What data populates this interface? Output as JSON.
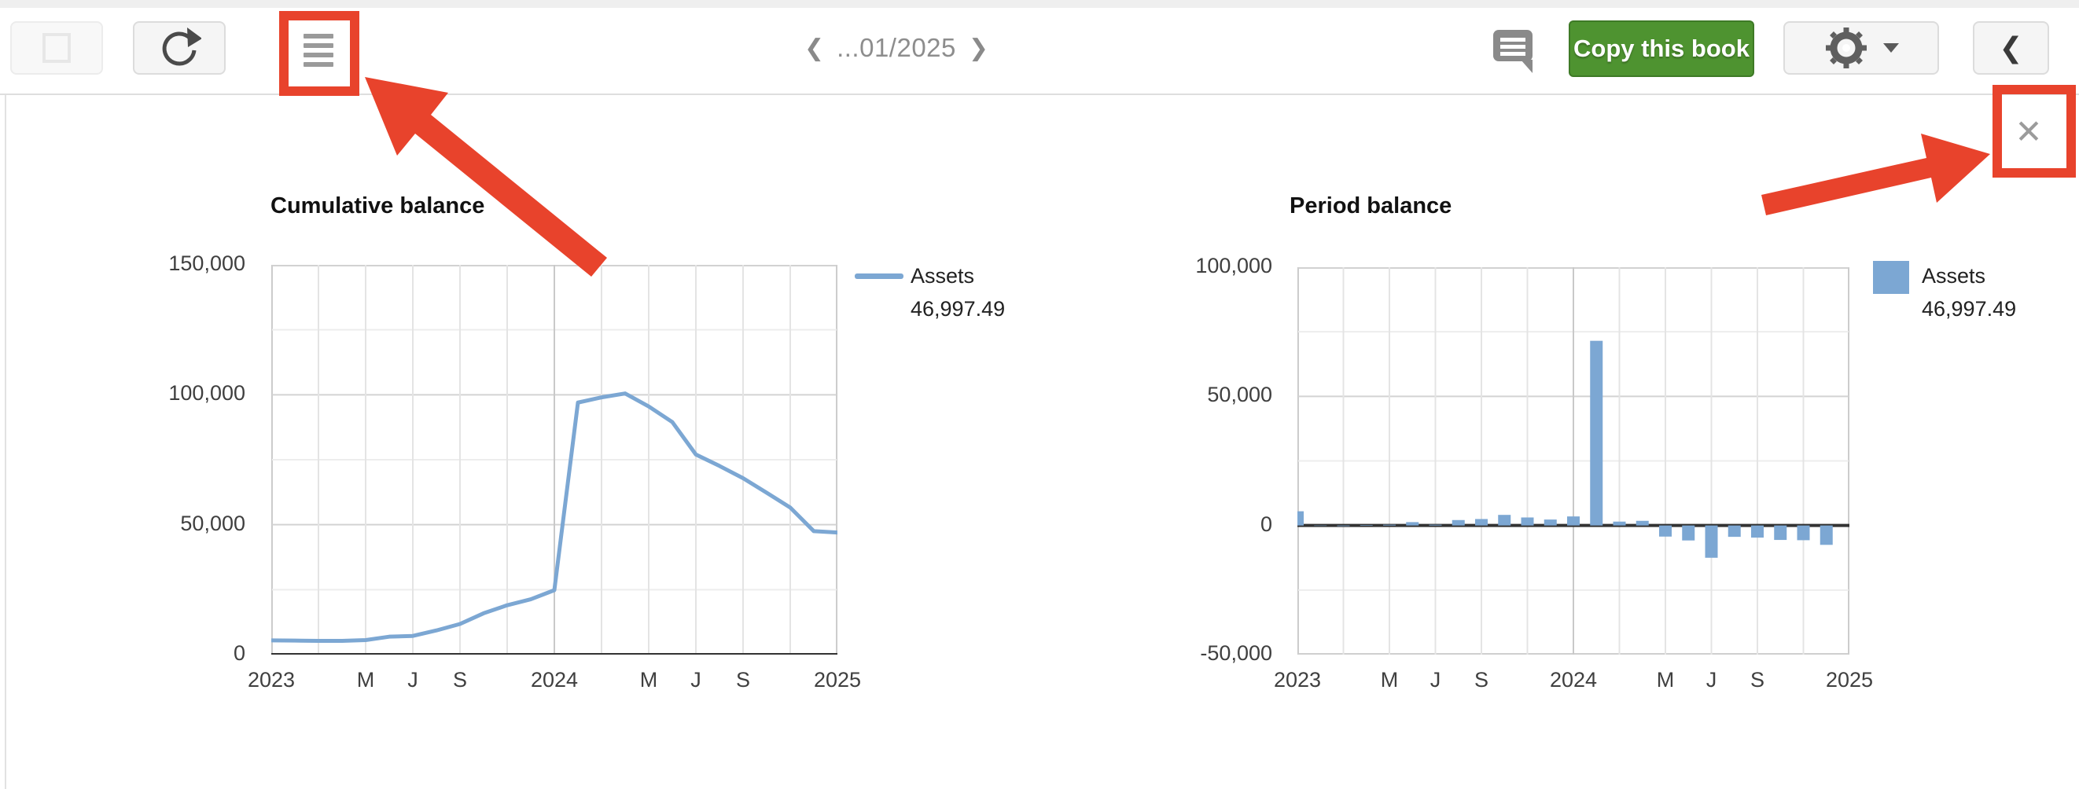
{
  "toolbar": {
    "select_button": {
      "icon": "square-outline-icon"
    },
    "refresh_button": {
      "icon": "refresh-icon"
    },
    "transactions_list_button": {
      "icon": "list-icon"
    },
    "date_nav": {
      "prev": "❮",
      "label": "...01/2025",
      "next": "❯"
    },
    "comment_button": {
      "icon": "comment-icon"
    },
    "copy_book_button": {
      "label": "Copy this book"
    },
    "settings_button": {
      "icon": "gear-icon",
      "has_caret": true
    },
    "collapse_button": {
      "icon": "chevron-left-icon",
      "glyph": "❮"
    }
  },
  "panel": {
    "close_icon": "✕"
  },
  "annotations": {
    "color": "#e8432c",
    "highlight_boxes": [
      "transactions-list-button",
      "panel-close-button"
    ],
    "arrow_count": 2
  },
  "colors": {
    "series_blue": "#7ca7d3",
    "green_button": "#4e9330",
    "zero_axis": "#333333",
    "grid_major": "#d3d3d3",
    "grid_minor": "#ededed",
    "grid_vertical": "#e4e4e4",
    "grid_year": "#c9c9c9",
    "plot_border": "#cfcfcf"
  },
  "chart_data": [
    {
      "type": "line",
      "title": "Cumulative balance",
      "legend": {
        "name": "Assets",
        "value": "46,997.49",
        "position": "right",
        "swatch": "line"
      },
      "x": [
        "2023-01",
        "2023-02",
        "2023-03",
        "2023-04",
        "2023-05",
        "2023-06",
        "2023-07",
        "2023-08",
        "2023-09",
        "2023-10",
        "2023-11",
        "2023-12",
        "2024-01",
        "2024-02",
        "2024-03",
        "2024-04",
        "2024-05",
        "2024-06",
        "2024-07",
        "2024-08",
        "2024-09",
        "2024-10",
        "2024-11",
        "2024-12",
        "2025-01"
      ],
      "x_ticks": [
        {
          "index": 0,
          "label": "2023"
        },
        {
          "index": 4,
          "label": "M"
        },
        {
          "index": 6,
          "label": "J"
        },
        {
          "index": 8,
          "label": "S"
        },
        {
          "index": 12,
          "label": "2024"
        },
        {
          "index": 16,
          "label": "M"
        },
        {
          "index": 18,
          "label": "J"
        },
        {
          "index": 20,
          "label": "S"
        },
        {
          "index": 24,
          "label": "2025"
        }
      ],
      "y_ticks": [
        {
          "value": 0,
          "label": "0"
        },
        {
          "value": 50000,
          "label": "50,000"
        },
        {
          "value": 100000,
          "label": "100,000"
        },
        {
          "value": 150000,
          "label": "150,000"
        }
      ],
      "ylim": [
        0,
        150000
      ],
      "minor_grid_step": 25000,
      "grid": true,
      "series": [
        {
          "name": "Assets",
          "color": "#7ca7d3",
          "values": [
            5500,
            5400,
            5300,
            5300,
            5600,
            6900,
            7200,
            9300,
            11800,
            15900,
            19000,
            21300,
            24800,
            97000,
            99000,
            100500,
            95500,
            89500,
            77000,
            72600,
            67900,
            62300,
            56600,
            47500,
            46997.49
          ]
        }
      ]
    },
    {
      "type": "bar",
      "title": "Period balance",
      "legend": {
        "name": "Assets",
        "value": "46,997.49",
        "position": "right",
        "swatch": "square"
      },
      "x": [
        "2023-01",
        "2023-02",
        "2023-03",
        "2023-04",
        "2023-05",
        "2023-06",
        "2023-07",
        "2023-08",
        "2023-09",
        "2023-10",
        "2023-11",
        "2023-12",
        "2024-01",
        "2024-02",
        "2024-03",
        "2024-04",
        "2024-05",
        "2024-06",
        "2024-07",
        "2024-08",
        "2024-09",
        "2024-10",
        "2024-11",
        "2024-12",
        "2025-01"
      ],
      "x_ticks": [
        {
          "index": 0,
          "label": "2023"
        },
        {
          "index": 4,
          "label": "M"
        },
        {
          "index": 6,
          "label": "J"
        },
        {
          "index": 8,
          "label": "S"
        },
        {
          "index": 12,
          "label": "2024"
        },
        {
          "index": 16,
          "label": "M"
        },
        {
          "index": 18,
          "label": "J"
        },
        {
          "index": 20,
          "label": "S"
        },
        {
          "index": 24,
          "label": "2025"
        }
      ],
      "y_ticks": [
        {
          "value": -50000,
          "label": "-50,000"
        },
        {
          "value": 0,
          "label": "0"
        },
        {
          "value": 50000,
          "label": "50,000"
        },
        {
          "value": 100000,
          "label": "100,000"
        }
      ],
      "ylim": [
        -50000,
        100000
      ],
      "minor_grid_step": 25000,
      "grid": true,
      "series": [
        {
          "name": "Assets",
          "color": "#7ca7d3",
          "values": [
            5500,
            -150,
            -250,
            200,
            300,
            1300,
            300,
            2100,
            2500,
            4100,
            3100,
            2300,
            3500,
            71500,
            1500,
            1800,
            -4300,
            -5800,
            -12500,
            -4400,
            -4700,
            -5600,
            -5700,
            -7500,
            0
          ]
        }
      ]
    }
  ]
}
